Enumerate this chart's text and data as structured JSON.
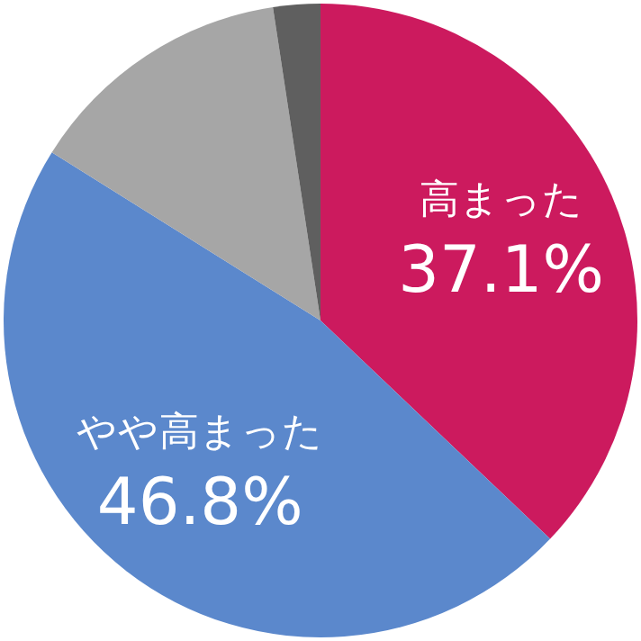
{
  "chart_data": {
    "type": "pie",
    "categories": [
      "高まった",
      "やや高まった",
      null,
      null
    ],
    "values": [
      37.1,
      46.8,
      13.7,
      2.4
    ],
    "colors": [
      "#cc1a5e",
      "#5b88cc",
      "#a6a6a6",
      "#5f5f5f"
    ],
    "value_labels": [
      "37.1%",
      "46.8%",
      null,
      null
    ]
  }
}
